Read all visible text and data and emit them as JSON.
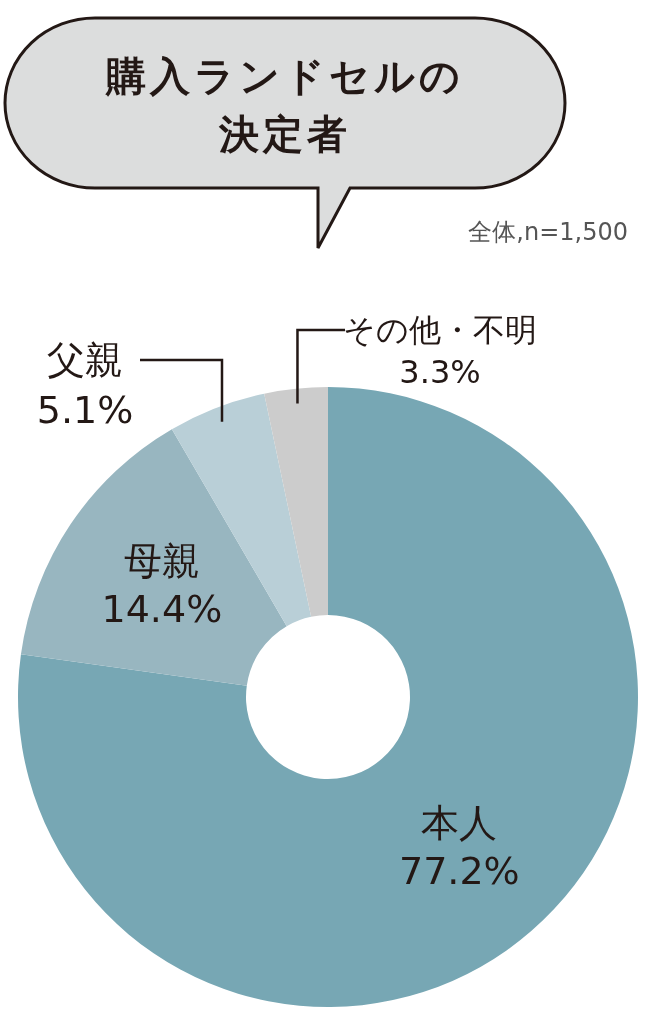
{
  "chart_data": {
    "type": "donut",
    "title": "購入ランドセルの決定者",
    "subtitle": "全体,n=1,500",
    "categories": [
      "本人",
      "母親",
      "父親",
      "その他・不明"
    ],
    "values": [
      77.2,
      14.4,
      5.1,
      3.3
    ],
    "colors": [
      "#77a7b4",
      "#98b6c0",
      "#b9cfd7",
      "#cccccc"
    ],
    "value_labels": [
      "77.2%",
      "14.4%",
      "5.1%",
      "3.3%"
    ]
  }
}
